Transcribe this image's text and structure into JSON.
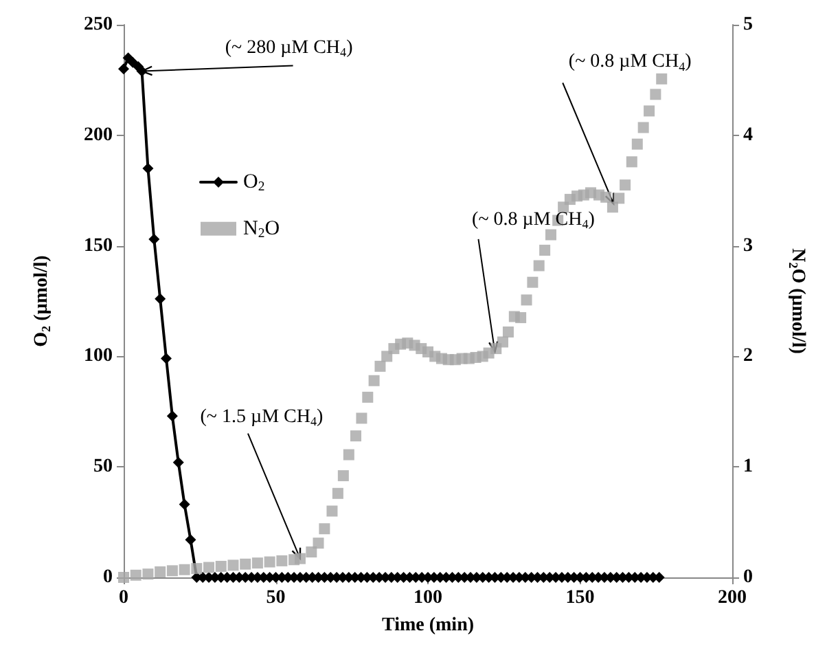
{
  "chart_data": {
    "type": "line",
    "xlabel": "Time (min)",
    "ylabel": "O$_{2}$ (µmol/l)",
    "y2label": "N$_{2}$O (µmol/l)",
    "xlim": [
      0,
      200
    ],
    "xticks": [
      0,
      50,
      100,
      150,
      200
    ],
    "ylim": [
      0,
      250
    ],
    "yticks": [
      0,
      50,
      100,
      150,
      200,
      250
    ],
    "y2lim": [
      0,
      5
    ],
    "y2ticks": [
      0,
      1,
      2,
      3,
      4,
      5
    ],
    "grid": false,
    "legend": "top left",
    "series": [
      {
        "name": "O$_{2}$",
        "type": "line",
        "marker": "diamond",
        "color": "#000000",
        "x": [
          0,
          1.5,
          3,
          4.8,
          6,
          8,
          10,
          12,
          14,
          16,
          18,
          20,
          22,
          24,
          26,
          28,
          30,
          32,
          34,
          36,
          38,
          40,
          42,
          44,
          46,
          48,
          50,
          52,
          54,
          56,
          58,
          60,
          62,
          64,
          66,
          68,
          70,
          72,
          74,
          76,
          78,
          80,
          82,
          84,
          86,
          88,
          90,
          92,
          94,
          96,
          98,
          100,
          102,
          104,
          106,
          108,
          110,
          112,
          114,
          116,
          118,
          120,
          122,
          124,
          126,
          128,
          130,
          132,
          134,
          136,
          138,
          140,
          142,
          144,
          146,
          148,
          150,
          152,
          154,
          156,
          158,
          160,
          162,
          164,
          166,
          168,
          170,
          172,
          174,
          176
        ],
        "values": [
          230,
          235,
          233,
          231,
          229,
          185,
          153,
          126,
          99,
          73,
          52,
          33,
          17,
          0,
          0,
          0,
          0,
          0,
          0,
          0,
          0,
          0,
          0,
          0,
          0,
          0,
          0,
          0,
          0,
          0,
          0,
          0,
          0,
          0,
          0,
          0,
          0,
          0,
          0,
          0,
          0,
          0,
          0,
          0,
          0,
          0,
          0,
          0,
          0,
          0,
          0,
          0,
          0,
          0,
          0,
          0,
          0,
          0,
          0,
          0,
          0,
          0,
          0,
          0,
          0,
          0,
          0,
          0,
          0,
          0,
          0,
          0,
          0,
          0,
          0,
          0,
          0,
          0,
          0,
          0,
          0,
          0,
          0,
          0,
          0,
          0,
          0,
          0,
          0,
          0
        ]
      },
      {
        "name": "N$_{2}$O",
        "type": "scatter",
        "marker": "square",
        "axis": "y2",
        "color": "#a6a6a6",
        "x": [
          0,
          4,
          8,
          12,
          16,
          20,
          24,
          28,
          32,
          36,
          40,
          44,
          48,
          52,
          56,
          58,
          61.7,
          64,
          66,
          68.5,
          70.4,
          72.2,
          74,
          76.3,
          78.2,
          80.2,
          82.3,
          84.3,
          86.5,
          88.8,
          91,
          93.3,
          95.6,
          97.8,
          100,
          102.3,
          104.5,
          106.7,
          109,
          111.2,
          113.5,
          115.7,
          118,
          120,
          122.4,
          124.6,
          126.4,
          128.4,
          130.5,
          132.4,
          134.4,
          136.5,
          138.4,
          140.4,
          142.7,
          144.5,
          146.7,
          149,
          151.2,
          153.5,
          156.2,
          158.5,
          160.7,
          162.8,
          164.8,
          167,
          168.8,
          170.8,
          172.7,
          174.8,
          176.8
        ],
        "values": [
          0,
          0.02,
          0.03,
          0.05,
          0.06,
          0.07,
          0.08,
          0.09,
          0.1,
          0.11,
          0.12,
          0.13,
          0.14,
          0.15,
          0.16,
          0.17,
          0.23,
          0.31,
          0.44,
          0.6,
          0.76,
          0.92,
          1.11,
          1.28,
          1.44,
          1.63,
          1.78,
          1.91,
          2.0,
          2.07,
          2.11,
          2.12,
          2.1,
          2.07,
          2.04,
          2.0,
          1.98,
          1.97,
          1.97,
          1.98,
          1.98,
          1.99,
          2.0,
          2.03,
          2.07,
          2.13,
          2.22,
          2.36,
          2.35,
          2.51,
          2.67,
          2.82,
          2.96,
          3.1,
          3.23,
          3.35,
          3.42,
          3.45,
          3.46,
          3.48,
          3.46,
          3.44,
          3.35,
          3.43,
          3.55,
          3.76,
          3.92,
          4.07,
          4.22,
          4.37,
          4.51
        ]
      }
    ],
    "annotations": [
      {
        "text": "(~ 280 µM CH$_{4}$)",
        "x": 6,
        "y": 229
      },
      {
        "text": "(~ 1.5 µM CH$_{4}$)",
        "x": 58,
        "y": 8.5
      },
      {
        "text": "(~ 0.8 µM CH$_{4}$)",
        "x": 122,
        "y": 102
      },
      {
        "text": "(~ 0.8 µM CH$_{4}$)",
        "x": 161,
        "y": 169
      }
    ]
  }
}
